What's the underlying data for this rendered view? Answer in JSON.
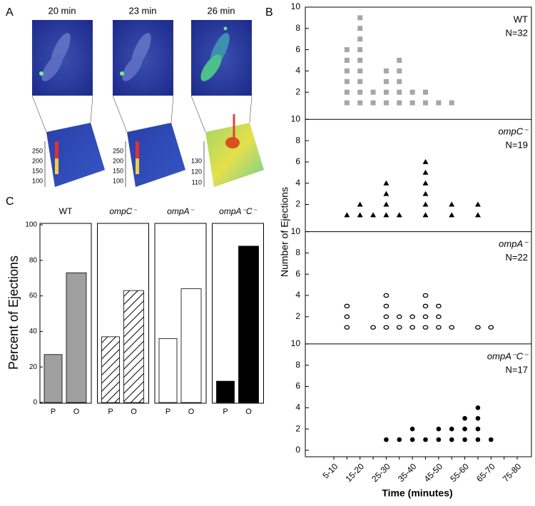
{
  "panel_labels": [
    "A",
    "B",
    "C"
  ],
  "panel_a": {
    "frames": [
      {
        "time": "20 min",
        "surface_ticks": [
          250,
          200,
          150,
          100
        ]
      },
      {
        "time": "23 min",
        "surface_ticks": [
          250,
          200,
          150,
          100
        ]
      },
      {
        "time": "26 min",
        "surface_ticks": [
          130,
          120,
          110
        ]
      }
    ]
  },
  "chart_data": [
    {
      "type": "dot",
      "title": "WT",
      "annotation": "N=32",
      "marker": "square",
      "color": "#a6a6a6",
      "values": [
        0,
        6,
        9,
        2,
        4,
        5,
        2,
        2,
        1,
        1,
        0,
        0,
        0,
        0,
        0
      ],
      "ylim": [
        0,
        10
      ],
      "yticks": [
        2,
        4,
        6,
        8,
        10
      ],
      "ylabel": "Number of Ejections"
    },
    {
      "type": "dot",
      "title": "ompC⁻",
      "annotation": "N=19",
      "marker": "triangle",
      "color": "#000000",
      "values": [
        0,
        1,
        2,
        1,
        4,
        1,
        0,
        6,
        0,
        2,
        0,
        2,
        0,
        0,
        0
      ],
      "ylim": [
        0,
        10
      ],
      "yticks": [
        2,
        4,
        6,
        8,
        10
      ]
    },
    {
      "type": "dot",
      "title": "ompA⁻",
      "annotation": "N=22",
      "marker": "circle-open",
      "color": "#000000",
      "values": [
        0,
        3,
        0,
        1,
        4,
        2,
        2,
        4,
        3,
        1,
        0,
        1,
        1,
        0,
        0
      ],
      "ylim": [
        0,
        10
      ],
      "yticks": [
        2,
        4,
        6,
        8,
        10
      ]
    },
    {
      "type": "dot",
      "title": "ompA⁻C⁻",
      "annotation": "N=17",
      "marker": "circle",
      "color": "#000000",
      "categories": [
        "5-10",
        null,
        "15-20",
        null,
        "25-30",
        null,
        "35-40",
        null,
        "45-50",
        null,
        "55-60",
        null,
        "65-70",
        null,
        "75-80"
      ],
      "values": [
        0,
        0,
        0,
        0,
        1,
        1,
        2,
        1,
        2,
        2,
        3,
        4,
        1,
        0,
        0
      ],
      "ylim": [
        0,
        10
      ],
      "yticks": [
        0,
        2,
        4,
        6,
        8,
        10
      ],
      "xlabel": "Time (minutes)"
    },
    {
      "type": "bar",
      "title": "WT",
      "categories": [
        "P",
        "O"
      ],
      "values": [
        27,
        73
      ],
      "color": "#a0a0a0",
      "ylim": [
        0,
        100
      ],
      "yticks": [
        0,
        20,
        40,
        60,
        80,
        100
      ],
      "ylabel": "Percent of Ejections"
    },
    {
      "type": "bar",
      "title": "ompC⁻",
      "categories": [
        "P",
        "O"
      ],
      "values": [
        37,
        63
      ],
      "color": "#ffffff",
      "pattern": "hatch",
      "ylim": [
        0,
        100
      ]
    },
    {
      "type": "bar",
      "title": "ompA⁻",
      "categories": [
        "P",
        "O"
      ],
      "values": [
        36,
        64
      ],
      "color": "#ffffff",
      "ylim": [
        0,
        100
      ]
    },
    {
      "type": "bar",
      "title": "ompA⁻C⁻",
      "categories": [
        "P",
        "O"
      ],
      "values": [
        12,
        88
      ],
      "color": "#000000",
      "ylim": [
        0,
        100
      ]
    }
  ]
}
